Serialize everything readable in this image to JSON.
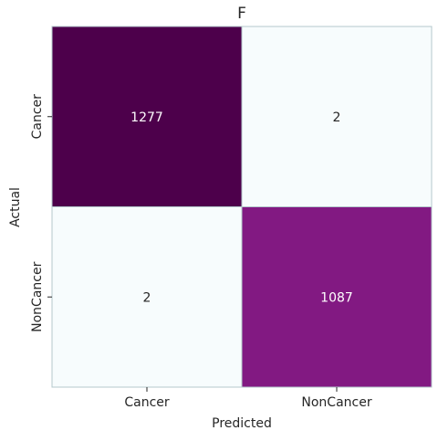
{
  "chart_data": {
    "type": "heatmap",
    "title": "F",
    "xlabel": "Predicted",
    "ylabel": "Actual",
    "x_categories": [
      "Cancer",
      "NonCancer"
    ],
    "y_categories": [
      "Cancer",
      "NonCancer"
    ],
    "values": [
      [
        1277,
        2
      ],
      [
        2,
        1087
      ]
    ],
    "colormap": "BuPu",
    "grid": false,
    "colorbar": false,
    "colors": {
      "low": "#f7fcfd",
      "high": "#4d004b",
      "cell_border": "#b4c8cc",
      "text_dark": "#262626",
      "text_light": "#ffffff"
    }
  }
}
